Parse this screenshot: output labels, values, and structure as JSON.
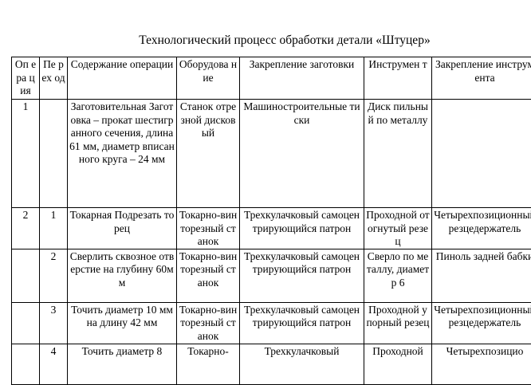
{
  "title": "Технологический процесс обработки детали «Штуцер»",
  "headers": [
    "Оп ера ция",
    "Пе рех од",
    "Содержание операции",
    "Оборудова ние",
    "Закрепление заготовки",
    "Инструмен т",
    "Закрепление инструмента"
  ],
  "rows": [
    [
      "1",
      "",
      "Заготовительная Заготовка – прокат шестигранного сечения, длина 61 мм, диаметр вписанного круга – 24 мм",
      "Станок отрезной дисковый",
      "Машиностроительные тиски",
      "Диск пильный по металлу",
      ""
    ],
    [
      "2",
      "1",
      "Токарная Подрезать торец",
      "Токарно-винторезный станок",
      "Трехкулачковый самоцентрирующийся патрон",
      "Проходной отогнутый резец",
      "Четырехпозиционный резцедержатель"
    ],
    [
      "",
      "2",
      "Сверлить сквозное отверстие на глубину 60мм",
      "Токарно-винторезный станок",
      "Трехкулачковый самоцентрирующийся патрон",
      "Сверло по металлу, диаметр 6",
      "Пиноль задней бабки"
    ],
    [
      "",
      "3",
      "Точить диаметр 10 мм на длину 42 мм",
      "Токарно-винторезный станок",
      "Трехкулачковый самоцентрирующийся патрон",
      "Проходной упорный резец",
      "Четырехпозиционный резцедержатель"
    ],
    [
      "",
      "4",
      "Точить диаметр 8",
      "Токарно-",
      "Трехкулачковый",
      "Проходной",
      "Четырехпозицио"
    ]
  ]
}
